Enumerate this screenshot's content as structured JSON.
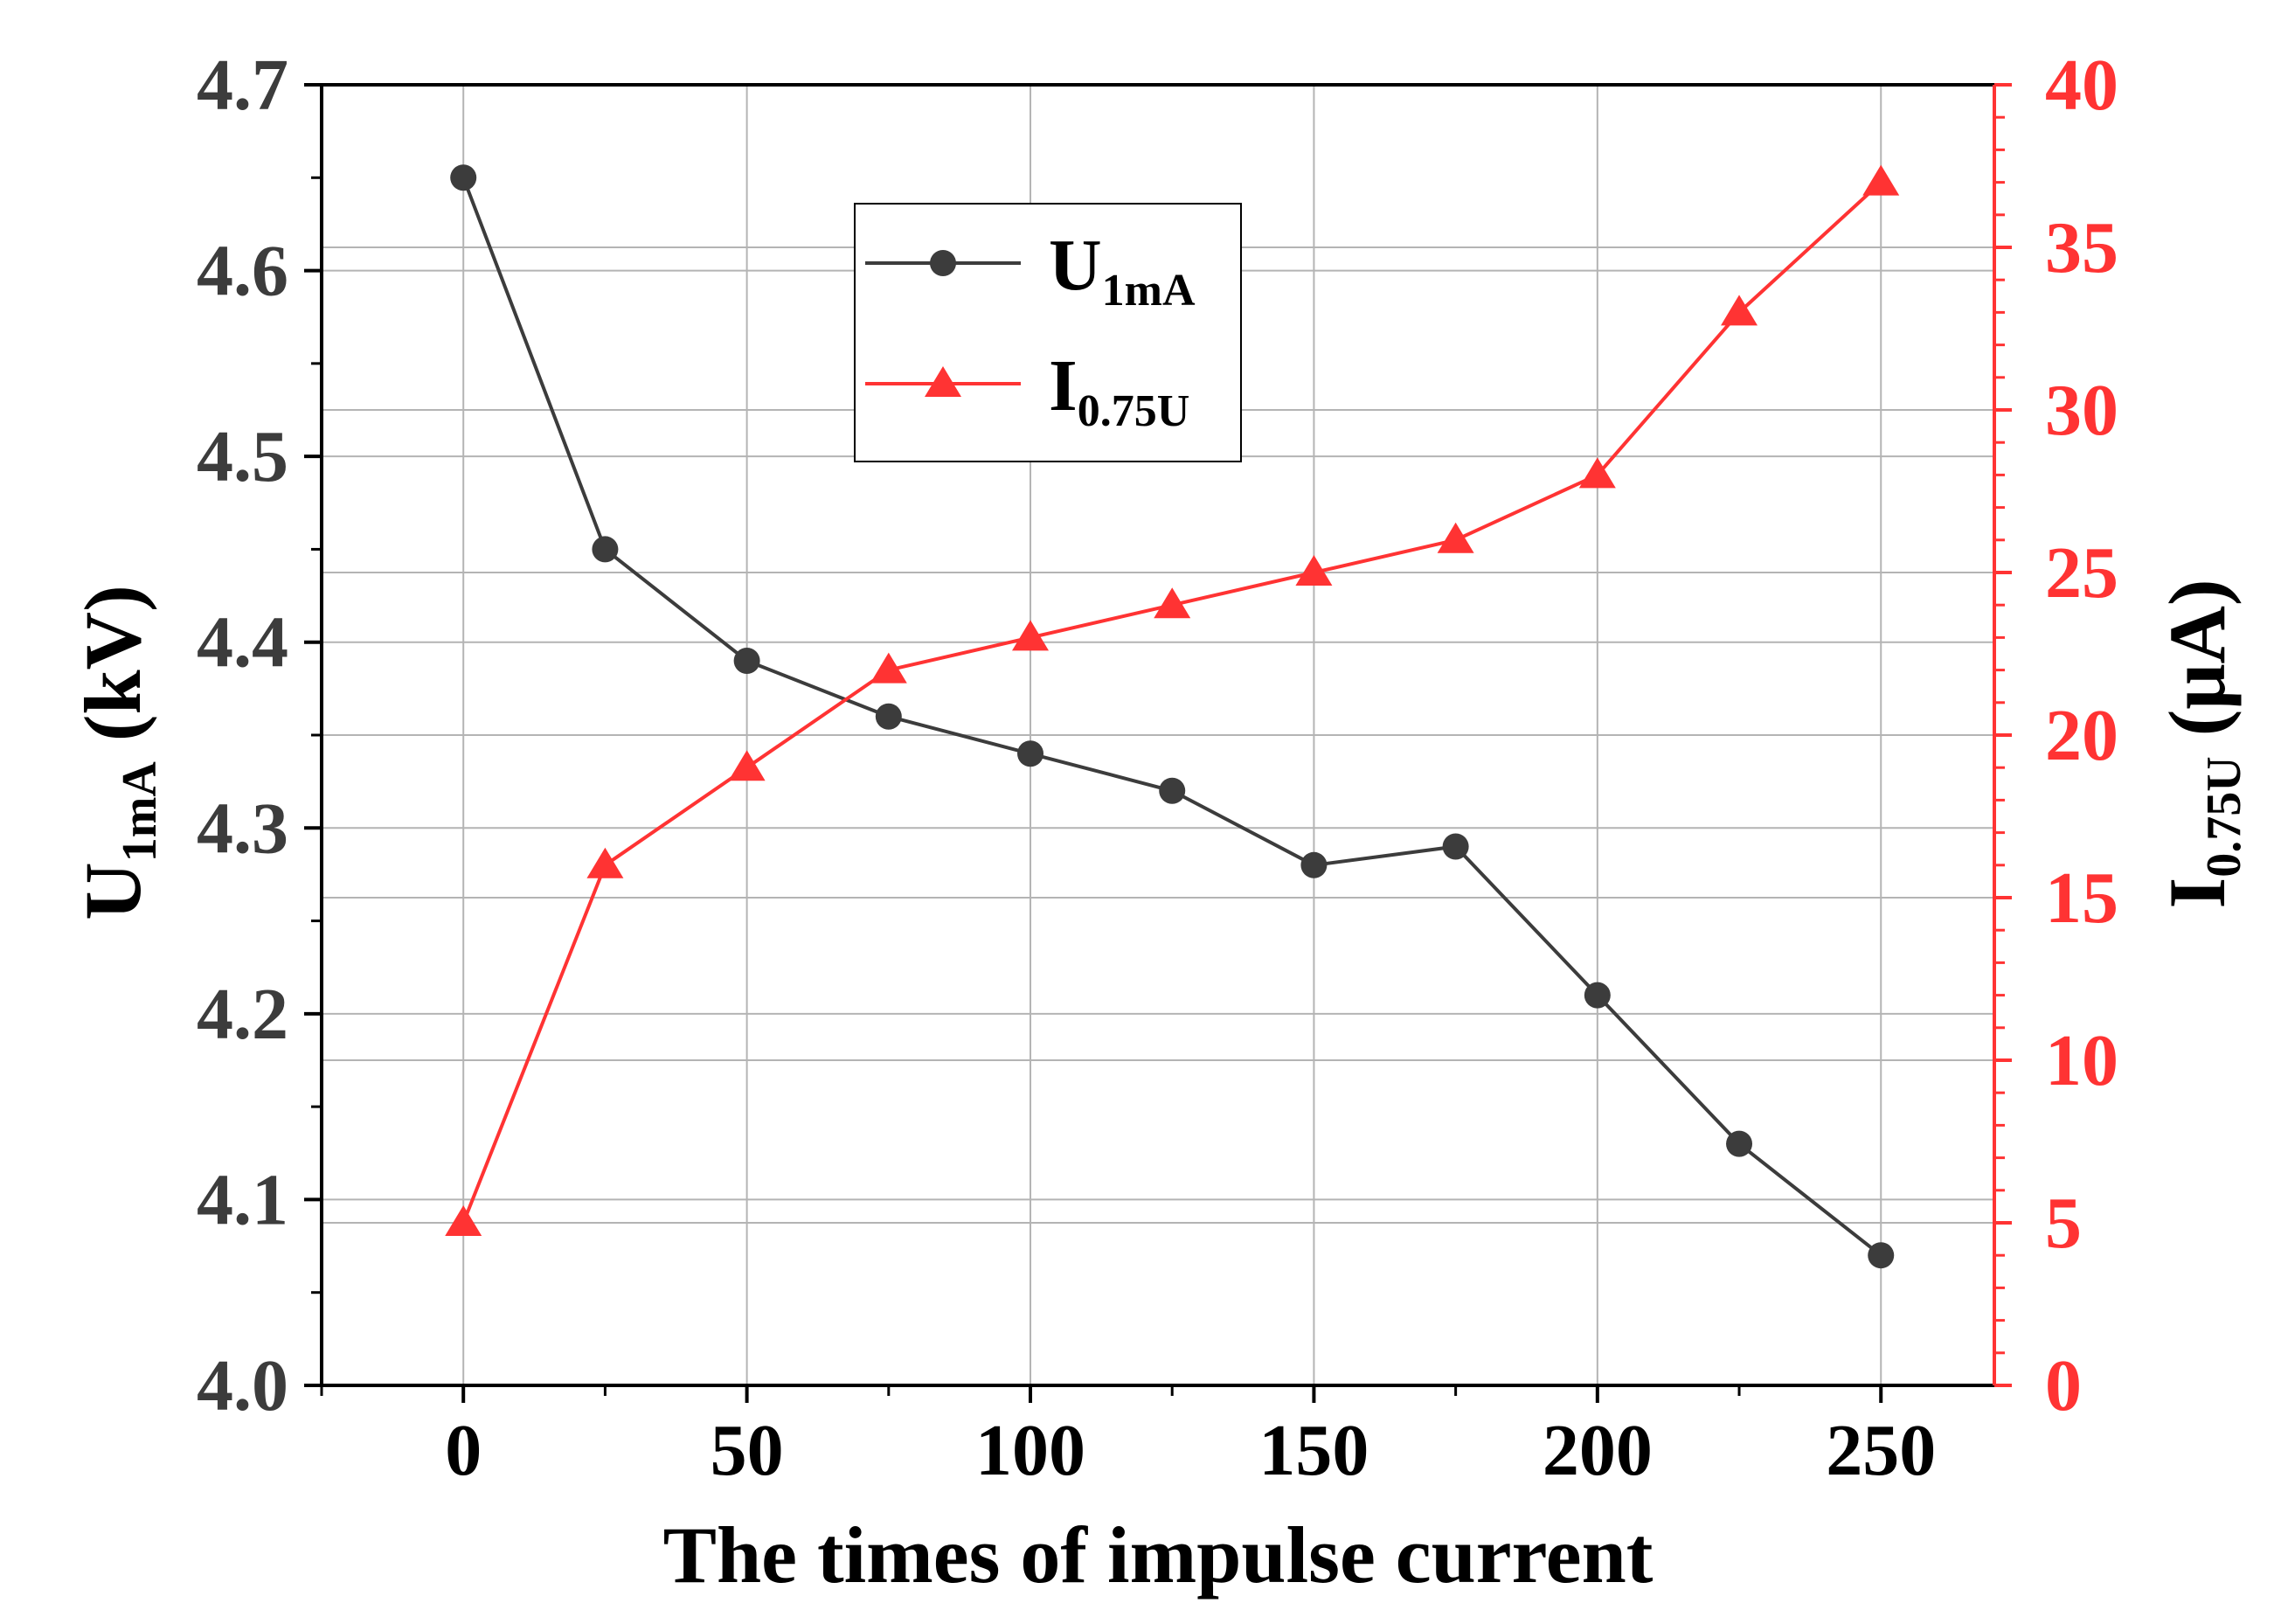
{
  "chart_data": {
    "type": "line",
    "title": "",
    "xlabel": "The times of impulse current",
    "ylabel_left": {
      "main": "U",
      "sub": "1mA",
      "unit": " (kV)"
    },
    "ylabel_right": {
      "main": "I",
      "sub": "0.75U",
      "unit": " (μA)"
    },
    "xlim": [
      -25,
      270
    ],
    "ylim_left": [
      4.0,
      4.7
    ],
    "ylim_right": [
      0,
      40
    ],
    "x_ticks": [
      0,
      50,
      100,
      150,
      200,
      250
    ],
    "y_left_ticks": [
      4.0,
      4.1,
      4.2,
      4.3,
      4.4,
      4.5,
      4.6,
      4.7
    ],
    "y_right_ticks": [
      0,
      5,
      10,
      15,
      20,
      25,
      30,
      35,
      40
    ],
    "grid": true,
    "legend_position": "top-center",
    "x": [
      0,
      25,
      50,
      75,
      100,
      125,
      150,
      175,
      200,
      225,
      250
    ],
    "series": [
      {
        "name": "U1mA",
        "label_main": "U",
        "label_sub": "1mA",
        "axis": "left",
        "marker": "circle",
        "color": "#3c3c3c",
        "values": [
          4.65,
          4.45,
          4.39,
          4.36,
          4.34,
          4.32,
          4.28,
          4.29,
          4.21,
          4.13,
          4.07
        ]
      },
      {
        "name": "I0.75U",
        "label_main": "I",
        "label_sub": "0.75U",
        "axis": "right",
        "marker": "triangle",
        "color": "#ff3333",
        "values": [
          5,
          16,
          19,
          22,
          23,
          24,
          25,
          26,
          28,
          33,
          37
        ]
      }
    ]
  },
  "colors": {
    "left_axis": "#3c3c3c",
    "right_axis": "#ff3333",
    "frame": "#000000",
    "grid": "#b4b4b4"
  }
}
